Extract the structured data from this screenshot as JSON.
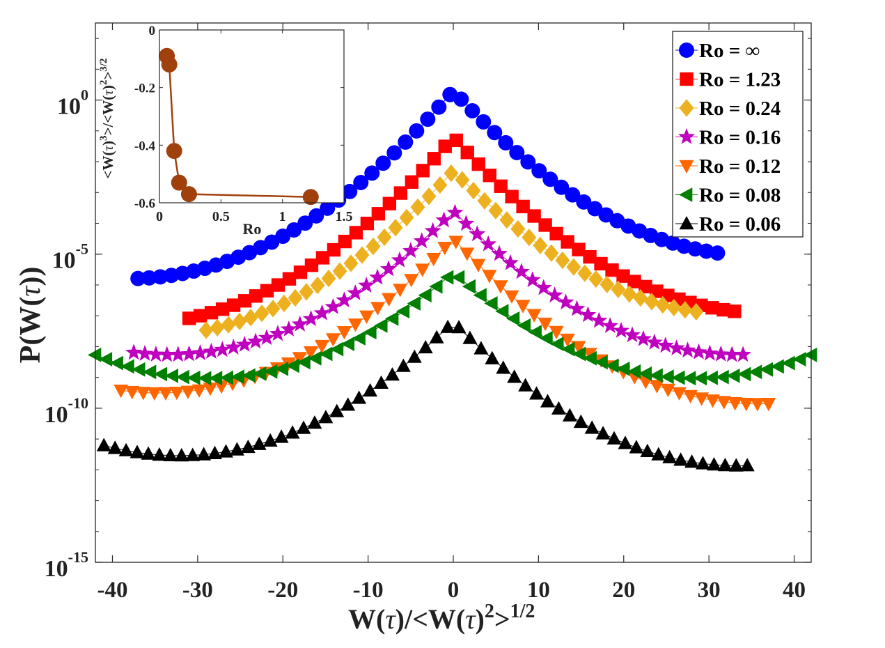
{
  "chart_data": {
    "type": "scatter",
    "title": "",
    "xlabel": "W(τ)/<W(τ)²>^1/2",
    "ylabel": "P(W(τ))",
    "xlim": [
      -42,
      42
    ],
    "ylim_log10": [
      -15,
      2.5
    ],
    "y_scale": "log",
    "grid": false,
    "legend_position": "top-right",
    "x_ticks": [
      -40,
      -30,
      -20,
      -10,
      0,
      10,
      20,
      30,
      40
    ],
    "x_tick_labels": [
      "-40",
      "-30",
      "-20",
      "-10",
      "0",
      "10",
      "20",
      "30",
      "40"
    ],
    "y_ticks_log10": [
      0,
      -5,
      -10,
      -15
    ],
    "y_tick_labels": [
      {
        "base": "10",
        "exp": "0"
      },
      {
        "base": "10",
        "exp": "-5"
      },
      {
        "base": "10",
        "exp": "-10"
      },
      {
        "base": "10",
        "exp": "-15"
      }
    ],
    "xlabel_parts": {
      "a": "W(",
      "tau1": "τ",
      "b": ")/<W(",
      "tau2": "τ",
      "c": ")",
      "sup2": "2",
      "d": ">",
      "sup3": "1/2"
    },
    "ylabel_parts": {
      "a": "P(W(",
      "tau": "τ",
      "b": "))"
    },
    "series": [
      {
        "name": "Ro = ∞",
        "color": "#0000ff",
        "marker": "circle",
        "peak_log10": 0.3,
        "slope_left": 0.32,
        "slope_right": 0.3,
        "curve": 0.55,
        "curve_k": 3.5,
        "xmin": -37,
        "xmax": 31,
        "dx": 1.3
      },
      {
        "name": "Ro = 1.23",
        "color": "#ff0000",
        "marker": "square",
        "peak_log10": -1.2,
        "slope_left": 0.32,
        "slope_right": 0.31,
        "curve": 0.6,
        "curve_k": 3.2,
        "xmin": -31,
        "xmax": 33,
        "dx": 1.3
      },
      {
        "name": "Ro = 0.24",
        "color": "#edb120",
        "marker": "diamond",
        "peak_log10": -2.3,
        "slope_left": 0.3,
        "slope_right": 0.28,
        "curve": 0.6,
        "curve_k": 3.2,
        "xmin": -29,
        "xmax": 28.5,
        "dx": 1.3
      },
      {
        "name": "Ro = 0.16",
        "color": "#bf00bf",
        "marker": "star",
        "peak_log10": -3.6,
        "slope_left": 0.28,
        "slope_right": 0.28,
        "curve": 0.55,
        "curve_k": 3.0,
        "xmin": -37.5,
        "xmax": 34,
        "dx": 1.3
      },
      {
        "name": "Ro = 0.12",
        "color": "#ff6600",
        "marker": "tri-down",
        "peak_log10": -4.5,
        "slope_left": 0.29,
        "slope_right": 0.3,
        "curve": 0.5,
        "curve_k": 3.0,
        "xmin": -39,
        "xmax": 37,
        "dx": 1.3
      },
      {
        "name": "Ro = 0.08",
        "color": "#007f00",
        "marker": "tri-left",
        "peak_log10": -5.6,
        "slope_left": 0.24,
        "slope_right": 0.24,
        "curve": 0.55,
        "curve_k": 3.0,
        "xmin": -42,
        "xmax": 42,
        "dx": 1.3
      },
      {
        "name": "Ro = 0.06",
        "color": "#000000",
        "marker": "tri-up",
        "peak_log10": -7.2,
        "slope_left": 0.27,
        "slope_right": 0.28,
        "curve": 0.8,
        "curve_k": 2.5,
        "xmin": -41,
        "xmax": 34.5,
        "dx": 1.3
      }
    ],
    "inset": {
      "type": "line",
      "xlabel": "Ro",
      "ylabel": "<W(τ)³>/<W(τ)²>^3/2",
      "ylabel_parts": {
        "a": "<W(",
        "tau1": "τ",
        "b": ")",
        "sup1": "3",
        "c": ">/<W(",
        "tau2": "τ",
        "d": ")",
        "sup2": "2",
        "e": ">",
        "sup3": "3/2"
      },
      "xlim": [
        0,
        1.5
      ],
      "ylim": [
        -0.6,
        0
      ],
      "x_ticks": [
        0,
        0.5,
        1,
        1.5
      ],
      "x_tick_labels": [
        "0",
        "0.5",
        "1",
        "1.5"
      ],
      "y_ticks": [
        0,
        -0.2,
        -0.4,
        -0.6
      ],
      "y_tick_labels": [
        "0",
        "-0.2",
        "-0.4",
        "-0.6"
      ],
      "color": "#a0410d",
      "x": [
        0.06,
        0.08,
        0.12,
        0.16,
        0.24,
        1.23
      ],
      "y": [
        -0.09,
        -0.12,
        -0.42,
        -0.53,
        -0.57,
        -0.58
      ]
    }
  }
}
